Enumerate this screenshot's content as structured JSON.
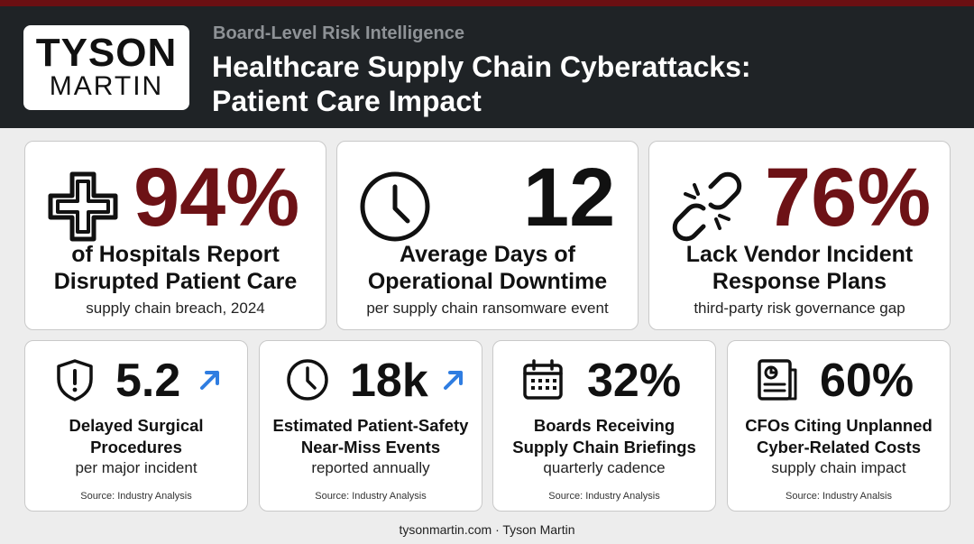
{
  "header": {
    "logo_top": "TYSON",
    "logo_bottom": "MARTIN",
    "eyebrow": "Board-Level Risk Intelligence",
    "title_line1": "Healthcare Supply Chain Cyberattacks:",
    "title_line2": "Patient Care Impact"
  },
  "stats_primary": [
    {
      "value": "94%",
      "label_line1": "of Hospitals Report",
      "label_line2": "Disrupted Patient Care",
      "sub": "supply chain breach, 2024",
      "icon": "medical-cross-icon"
    },
    {
      "value": "12",
      "label_line1": "Average Days of",
      "label_line2": "Operational Downtime",
      "sub": "per supply chain ransomware event",
      "icon": "clock-icon"
    },
    {
      "value": "76%",
      "label_line1": "Lack Vendor Incident",
      "label_line2": "Response Plans",
      "sub": "third-party risk governance gap",
      "icon": "broken-link-icon"
    }
  ],
  "stats_secondary": [
    {
      "value": "5.2",
      "label_line1": "Delayed Surgical",
      "label_line2": "Procedures",
      "sub": "per major incident",
      "source": "Source: Industry Analysis",
      "icon": "shield-alert-icon",
      "trend": "up-arrow-icon"
    },
    {
      "value": "18k",
      "label_line1": "Estimated Patient-Safety",
      "label_line2": "Near-Miss Events",
      "sub": "reported annually",
      "source": "Source: Industry Analysis",
      "icon": "clock-icon",
      "trend": "up-arrow-icon"
    },
    {
      "value": "32%",
      "label_line1": "Boards Receiving",
      "label_line2": "Supply Chain Briefings",
      "sub": "quarterly cadence",
      "source": "Source: Industry Analysis",
      "icon": "calendar-icon"
    },
    {
      "value": "60%",
      "label_line1": "CFOs Citing Unplanned",
      "label_line2": "Cyber-Related Costs",
      "sub": "supply chain impact",
      "source": "Source: Industry Analsis",
      "icon": "report-document-icon"
    }
  ],
  "colors": {
    "accent_maroon": "#6d1216",
    "header_bg": "#1f2326",
    "trend_blue": "#2f7de1"
  },
  "footer": "tysonmartin.com · Tyson Martin"
}
